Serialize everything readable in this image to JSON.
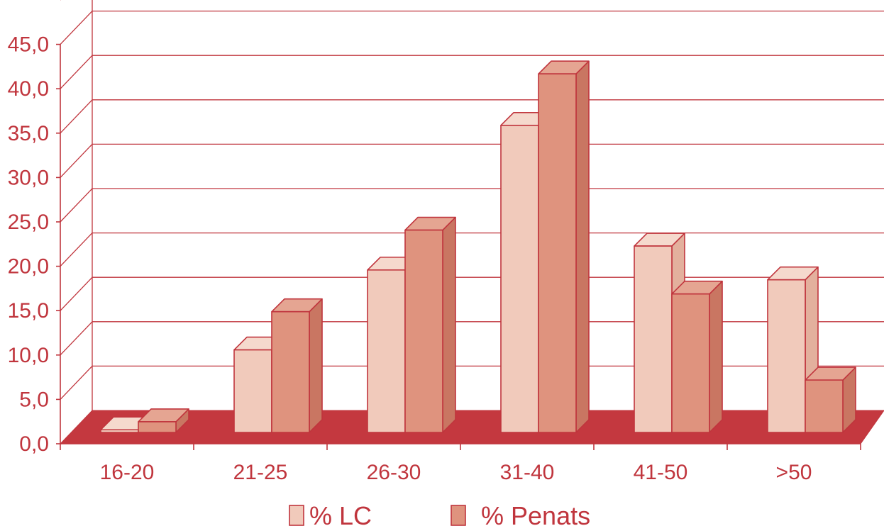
{
  "chart_data": {
    "type": "bar",
    "categories": [
      "16-20",
      "21-25",
      "26-30",
      "31-40",
      "41-50",
      ">50"
    ],
    "series": [
      {
        "name": "% LC",
        "values": [
          0.3,
          9.3,
          18.3,
          34.6,
          21.0,
          17.2
        ]
      },
      {
        "name": "% Penats",
        "values": [
          1.2,
          13.6,
          22.8,
          40.4,
          15.6,
          5.9
        ]
      }
    ],
    "ylim": [
      0,
      45
    ],
    "yticks": [
      "0,0",
      "5,0",
      "10,0",
      "15,0",
      "20,0",
      "25,0",
      "30,0",
      "35,0",
      "40,0",
      "45,0"
    ],
    "grid": true,
    "legend_position": "bottom",
    "colors": {
      "accent": "#c0353d",
      "lc_front": "#f1cabb",
      "lc_top": "#f5d9cd",
      "lc_side": "#e3b09d",
      "penats_front": "#df937e",
      "penats_top": "#e5a592",
      "penats_side": "#c97662",
      "floor": "#c4383f"
    }
  }
}
